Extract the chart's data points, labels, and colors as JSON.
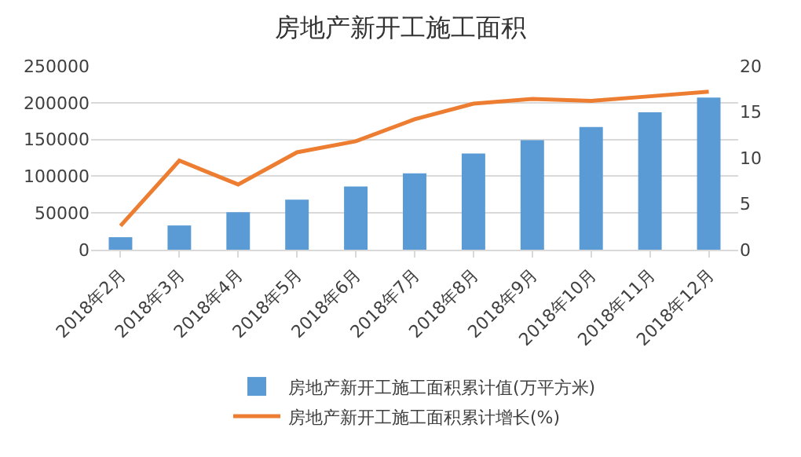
{
  "chart_data": {
    "type": "bar",
    "title": "房地产新开工施工面积",
    "categories": [
      "2018年2月",
      "2018年3月",
      "2018年4月",
      "2018年5月",
      "2018年6月",
      "2018年7月",
      "2018年8月",
      "2018年9月",
      "2018年10月",
      "2018年11月",
      "2018年12月"
    ],
    "series": [
      {
        "name": "房地产新开工施工面积累计值(万平方米)",
        "color": "#5b9bd5",
        "values": [
          17000,
          33000,
          51000,
          68000,
          86000,
          104000,
          131000,
          149000,
          167000,
          187000,
          207000
        ]
      },
      {
        "name": "房地产新开工施工面积累计增长(%)",
        "type": "line",
        "axis": "y2",
        "color": "#ed7d31",
        "values": [
          2.6,
          9.7,
          7.1,
          10.6,
          11.8,
          14.2,
          15.9,
          16.4,
          16.2,
          16.7,
          17.2
        ]
      }
    ],
    "ylim": [
      0,
      250000
    ],
    "yticks": [
      0,
      50000,
      100000,
      150000,
      200000,
      250000
    ],
    "y2lim": [
      0,
      20
    ],
    "y2ticks": [
      0,
      5,
      10,
      15,
      20
    ],
    "grid": "y",
    "legend": "bottom",
    "line_style": "solid",
    "marker": "none"
  }
}
